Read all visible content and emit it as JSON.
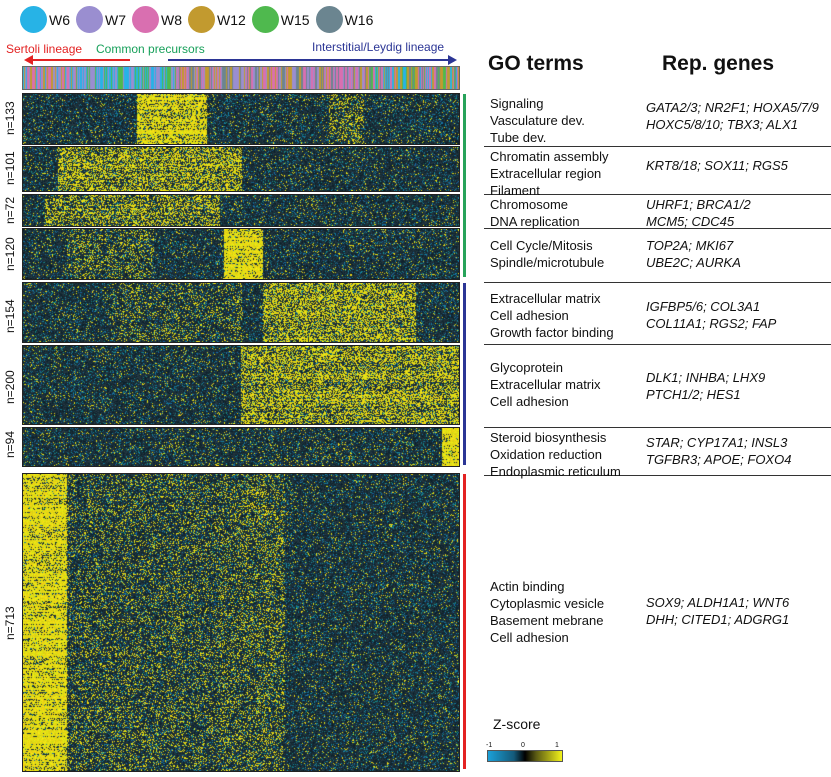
{
  "legend": [
    {
      "label": "W6",
      "color": "#27b3e6"
    },
    {
      "label": "W7",
      "color": "#9a8ed0"
    },
    {
      "label": "W8",
      "color": "#d96fb0"
    },
    {
      "label": "W12",
      "color": "#c29a2f"
    },
    {
      "label": "W15",
      "color": "#4fb94e"
    },
    {
      "label": "W16",
      "color": "#6b8590"
    }
  ],
  "lineage": {
    "sertoli": "Sertoli lineage",
    "sertoli_color": "#e32222",
    "common": "Common precursors",
    "common_color": "#17a05a",
    "interstitial": "Interstitial/Leydig lineage",
    "interstitial_color": "#2b3595"
  },
  "headers": {
    "go": "GO terms",
    "genes": "Rep. genes"
  },
  "clusters": [
    {
      "n": "n=133",
      "bar_color": "#27a35a",
      "go": [
        "Signaling",
        "Vasculature dev.",
        "Tube dev."
      ],
      "genes": [
        "GATA2/3; NR2F1; HOXA5/7/9",
        "HOXC5/8/10; TBX3; ALX1"
      ]
    },
    {
      "n": "n=101",
      "bar_color": "#27a35a",
      "go": [
        "Chromatin assembly",
        "Extracellular region",
        "Filament"
      ],
      "genes": [
        "KRT8/18; SOX11; RGS5"
      ]
    },
    {
      "n": "n=72",
      "bar_color": "#27a35a",
      "go": [
        "Chromosome",
        "DNA replication"
      ],
      "genes": [
        "UHRF1; BRCA1/2",
        "MCM5; CDC45"
      ]
    },
    {
      "n": "n=120",
      "bar_color": "#27a35a",
      "go": [
        "Cell Cycle/Mitosis",
        "Spindle/microtubule"
      ],
      "genes": [
        "TOP2A; MKI67",
        "UBE2C; AURKA"
      ]
    },
    {
      "n": "n=154",
      "bar_color": "#2b3595",
      "go": [
        "Extracellular matrix",
        "Cell adhesion",
        "Growth factor binding"
      ],
      "genes": [
        "IGFBP5/6; COL3A1",
        "COL11A1; RGS2; FAP"
      ]
    },
    {
      "n": "n=200",
      "bar_color": "#2b3595",
      "go": [
        "Glycoprotein",
        "Extracellular matrix",
        "Cell adhesion"
      ],
      "genes": [
        "DLK1; INHBA; LHX9",
        "PTCH1/2; HES1"
      ]
    },
    {
      "n": "n=94",
      "bar_color": "#2b3595",
      "go": [
        "Steroid biosynthesis",
        "Oxidation reduction",
        "Endoplasmic reticulum"
      ],
      "genes": [
        "STAR; CYP17A1; INSL3",
        "TGFBR3; APOE; FOXO4"
      ]
    },
    {
      "n": "n=713",
      "bar_color": "#e32222",
      "go": [
        "Actin binding",
        "Cytoplasmic vesicle",
        "Basement mebrane",
        "Cell adhesion"
      ],
      "genes": [
        "SOX9; ALDH1A1; WNT6",
        "DHH; CITED1; ADGRG1"
      ]
    }
  ],
  "zscore": {
    "title": "Z-score",
    "ticks": [
      "-1",
      "0",
      "1"
    ]
  }
}
